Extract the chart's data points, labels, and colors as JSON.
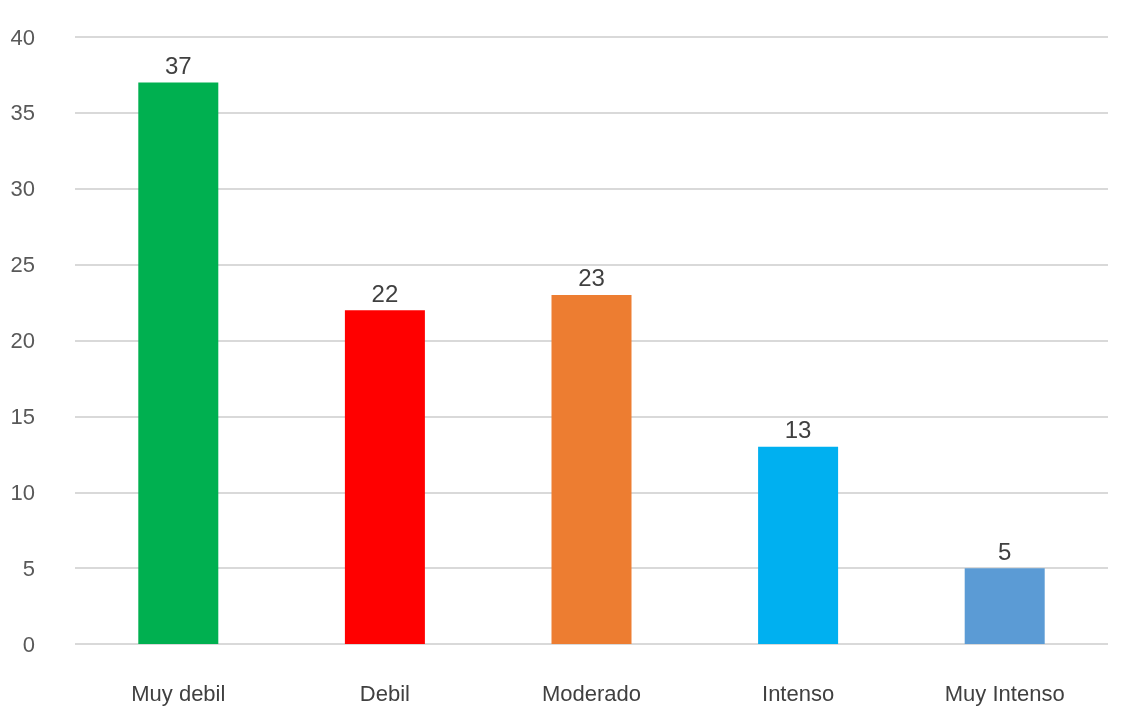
{
  "chart_data": {
    "type": "bar",
    "categories": [
      "Muy debil",
      "Debil",
      "Moderado",
      "Intenso",
      "Muy Intenso"
    ],
    "values": [
      37,
      22,
      23,
      13,
      5
    ],
    "colors": [
      "#00b050",
      "#ff0000",
      "#ed7d31",
      "#00b0f0",
      "#5b9bd5"
    ],
    "ylim": [
      0,
      40
    ],
    "yticks": [
      0,
      5,
      10,
      15,
      20,
      25,
      30,
      35,
      40
    ],
    "grid": "y",
    "data_labels": true
  }
}
